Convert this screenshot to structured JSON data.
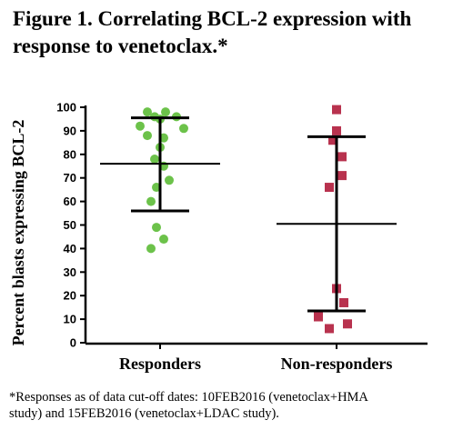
{
  "title_line1": "Figure 1. Correlating BCL-2 expression with",
  "title_line2": "response to venetoclax.*",
  "footnote_line1": "*Responses as of data cut-off dates: 10FEB2016 (venetoclax+HMA",
  "footnote_line2": "study) and 15FEB2016 (venetoclax+LDAC study).",
  "chart_data": {
    "type": "scatter",
    "title": "Figure 1. Correlating BCL-2 expression with response to venetoclax.*",
    "ylabel": "Percent blasts expressing BCL-2",
    "xlabel": "",
    "ylim": [
      0,
      100
    ],
    "yticks": [
      "0",
      "10",
      "20",
      "30",
      "40",
      "50",
      "60",
      "70",
      "80",
      "90",
      "100"
    ],
    "grid": false,
    "categories": [
      "Responders",
      "Non-responders"
    ],
    "series": [
      {
        "name": "Responders",
        "color": "#6cc24a",
        "marker": "circle",
        "values": [
          98,
          98,
          96,
          96,
          95,
          92,
          91,
          88,
          87,
          83,
          78,
          75,
          69,
          66,
          60,
          49,
          44,
          40
        ],
        "mean": 76,
        "sd_upper": 95.5,
        "sd_lower": 56
      },
      {
        "name": "Non-responders",
        "color": "#b8324e",
        "marker": "square",
        "values": [
          99,
          90,
          86,
          79,
          71,
          66,
          23,
          17,
          11,
          8,
          6
        ],
        "mean": 50.5,
        "sd_upper": 87.5,
        "sd_lower": 13.5
      }
    ]
  }
}
